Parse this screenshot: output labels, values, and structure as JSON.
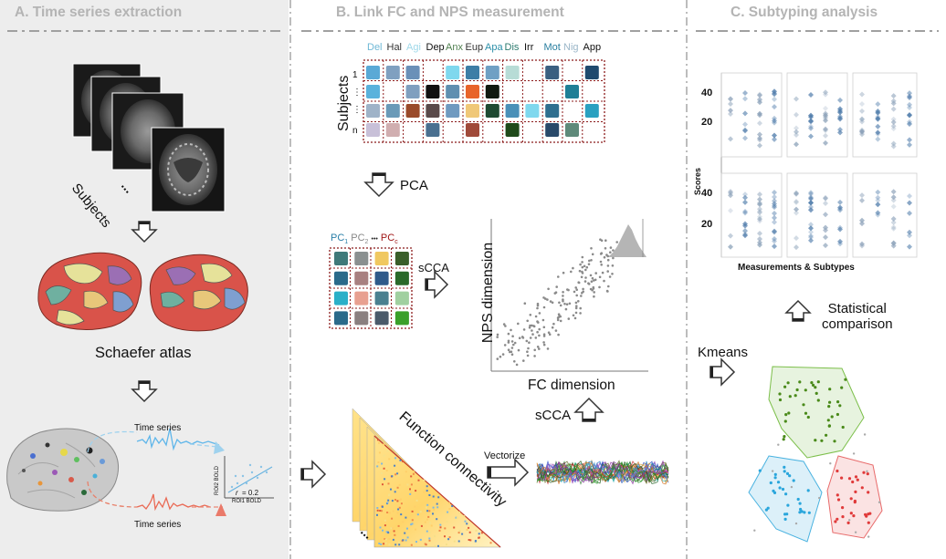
{
  "panels": {
    "a": {
      "title": "A.  Time series extraction"
    },
    "b": {
      "title": "B.  Link FC and NPS measurement"
    },
    "c": {
      "title": "C.  Subtyping analysis"
    }
  },
  "panel_a": {
    "subjects_label": "Subjects",
    "ellipsis": "...",
    "atlas_label": "Schaefer atlas",
    "time_series_top": "Time series",
    "time_series_bottom": "Time series",
    "roi2_label": "ROI2 BOLD",
    "roi1_label": "ROI1 BOLD",
    "r_label": "r",
    "r_value": "= 0.2"
  },
  "panel_b": {
    "subjects_axis_label": "Subjects",
    "nps_columns": [
      {
        "label": "Del",
        "color": "#6fb8d6"
      },
      {
        "label": "Hal",
        "color": "#333333"
      },
      {
        "label": "Agi",
        "color": "#9fd9ea"
      },
      {
        "label": "Dep",
        "color": "#111111"
      },
      {
        "label": "Anx",
        "color": "#4f7f4f"
      },
      {
        "label": "Eup",
        "color": "#333333"
      },
      {
        "label": "Apa",
        "color": "#2c8fa8"
      },
      {
        "label": "Dis",
        "color": "#2c7a6e"
      },
      {
        "label": "Irr",
        "color": "#111111"
      },
      {
        "label": "Mot",
        "color": "#2a7fa0"
      },
      {
        "label": "Nig",
        "color": "#9ab6c8"
      },
      {
        "label": "App",
        "color": "#111111"
      }
    ],
    "row_labels": [
      "1",
      "⋮",
      "⋮",
      "n"
    ],
    "pca_label": "PCA",
    "pc_labels": {
      "pc1": "PC",
      "pc1_sub": "1",
      "pc2": "PC",
      "pc2_sub": "2",
      "dots": "•••",
      "pcc": "PC",
      "pcc_sub": "c"
    },
    "scca_mid_label": "sCCA",
    "scatter_ylabel": "NPS dimension",
    "scatter_xlabel": "FC dimension",
    "scca_bottom_label": "sCCA",
    "fc_label": "Function connectivity",
    "vectorize_label": "Vectorize",
    "matrix_ellipsis": "..."
  },
  "panel_c": {
    "yticks": [
      "40",
      "20"
    ],
    "ylabel": "Scores",
    "xlabel": "Measurements & Subtypes",
    "stat_label_line1": "Statistical",
    "stat_label_line2": "comparison",
    "kmeans_label": "Kmeans"
  },
  "colors": {
    "panel_a_bg": "#ededed",
    "title_gray": "#b4b4b4",
    "brain_red": "#d9534a",
    "cluster_green": "#5a9a2a",
    "cluster_blue": "#2aa6dc",
    "cluster_red": "#e04545",
    "matrix_border": "#8b1a1a"
  }
}
